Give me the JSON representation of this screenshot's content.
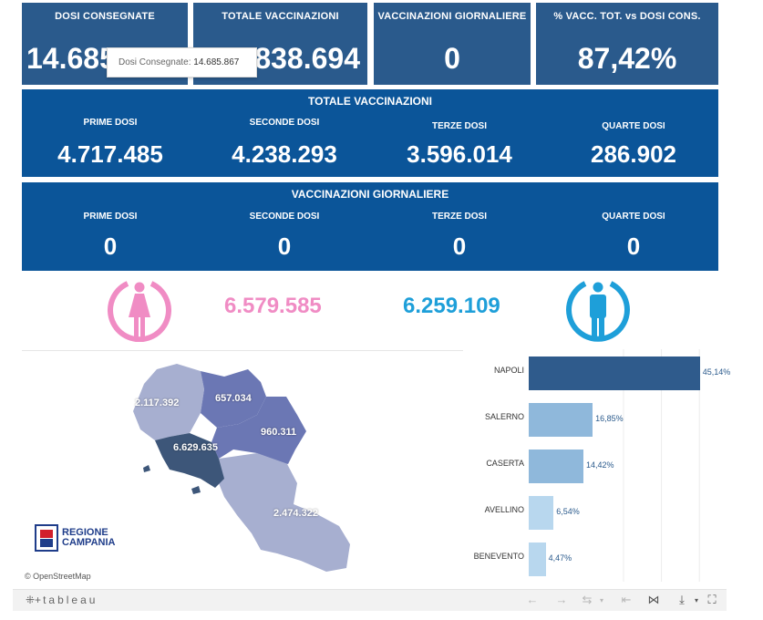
{
  "kpis": [
    {
      "title": "DOSI  CONSEGNATE",
      "value": "14.685.867"
    },
    {
      "title": "TOTALE VACCINAZIONI",
      "value": "12.838.694"
    },
    {
      "title": "VACCINAZIONI GIORNALIERE",
      "value": "0"
    },
    {
      "title": "% VACC. TOT. vs DOSI CONS.",
      "value": "87,42%"
    }
  ],
  "tooltip": {
    "label": "Dosi Consegnate:",
    "value": "14.685.867"
  },
  "totale": {
    "title": "TOTALE VACCINAZIONI",
    "cols": [
      {
        "label": "PRIME DOSI",
        "value": "4.717.485"
      },
      {
        "label": "SECONDE DOSI",
        "value": "4.238.293"
      },
      {
        "label": "TERZE DOSI",
        "value": "3.596.014"
      },
      {
        "label": "QUARTE DOSI",
        "value": "286.902"
      }
    ]
  },
  "giornaliere": {
    "title": "VACCINAZIONI GIORNALIERE",
    "cols": [
      {
        "label": "PRIME DOSI",
        "value": "0"
      },
      {
        "label": "SECONDE DOSI",
        "value": "0"
      },
      {
        "label": "TERZE DOSI",
        "value": "0"
      },
      {
        "label": "QUARTE DOSI",
        "value": "0"
      }
    ]
  },
  "gender": {
    "female": {
      "value": "6.579.585",
      "color": "#f08cc4",
      "icon": "female-icon"
    },
    "male": {
      "value": "6.259.109",
      "color": "#1e9fd9",
      "icon": "male-icon"
    }
  },
  "map": {
    "labels": {
      "caserta": "2.117.392",
      "benevento": "657.034",
      "avellino": "960.311",
      "napoli": "6.629.635",
      "salerno": "2.474.322"
    },
    "logo_line1": "REGIONE",
    "logo_line2": "CAMPANIA",
    "attribution": "© OpenStreetMap"
  },
  "chart_data": {
    "type": "bar",
    "orientation": "horizontal",
    "categories": [
      "NAPOLI",
      "SALERNO",
      "CASERTA",
      "AVELLINO",
      "BENEVENTO"
    ],
    "values": [
      45.14,
      16.85,
      14.42,
      6.54,
      4.47
    ],
    "labels": [
      "45,14%",
      "16,85%",
      "14,42%",
      "6,54%",
      "4,47%"
    ],
    "colors": [
      "#2f5b8c",
      "#8fb8db",
      "#8fb8db",
      "#b8d7ee",
      "#b8d7ee"
    ],
    "xlim": [
      0,
      50
    ],
    "grid": true
  },
  "footer": {
    "logo": "tableau"
  },
  "colors": {
    "kpi": "#2a5a8c",
    "panel": "#0b5599"
  }
}
